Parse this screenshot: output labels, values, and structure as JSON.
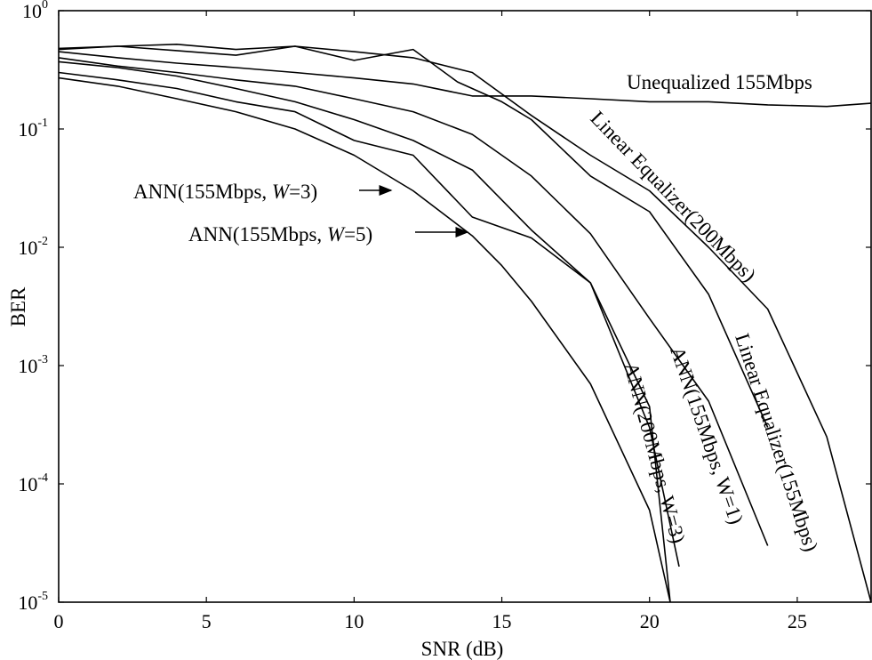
{
  "chart_data": {
    "type": "line",
    "xlabel": "SNR (dB)",
    "ylabel": "BER",
    "xlim": [
      0,
      27.5
    ],
    "ylim": [
      1e-05,
      1
    ],
    "yscale": "log",
    "grid": false,
    "x_ticks": [
      0,
      5,
      10,
      15,
      20,
      25
    ],
    "y_ticks": [
      {
        "value": 1,
        "base": "10",
        "exp": "0"
      },
      {
        "value": 0.1,
        "base": "10",
        "exp": "-1"
      },
      {
        "value": 0.01,
        "base": "10",
        "exp": "-2"
      },
      {
        "value": 0.001,
        "base": "10",
        "exp": "-3"
      },
      {
        "value": 0.0001,
        "base": "10",
        "exp": "-4"
      },
      {
        "value": 1e-05,
        "base": "10",
        "exp": "-5"
      }
    ],
    "series": [
      {
        "name": "Unequalized 155Mbps",
        "x": [
          0,
          2,
          4,
          6,
          8,
          10,
          12,
          14,
          16,
          18,
          20,
          22,
          24,
          26,
          27.5
        ],
        "y": [
          0.45,
          0.4,
          0.36,
          0.33,
          0.3,
          0.27,
          0.24,
          0.19,
          0.19,
          0.18,
          0.17,
          0.17,
          0.16,
          0.155,
          0.165
        ]
      },
      {
        "name": "Linear Equalizer(200Mbps)",
        "x": [
          0,
          2,
          4,
          6,
          8,
          10,
          12,
          14,
          16,
          18,
          20,
          22,
          24,
          26,
          27.5
        ],
        "y": [
          0.48,
          0.5,
          0.46,
          0.42,
          0.5,
          0.45,
          0.4,
          0.3,
          0.13,
          0.06,
          0.03,
          0.01,
          0.003,
          0.00025,
          1e-05
        ]
      },
      {
        "name": "Linear Equalizer(155Mbps)",
        "x": [
          0,
          2,
          4,
          6,
          8,
          10,
          12,
          13.5,
          15,
          16,
          18,
          20,
          22,
          24
        ],
        "y": [
          0.47,
          0.5,
          0.52,
          0.47,
          0.5,
          0.38,
          0.47,
          0.25,
          0.17,
          0.12,
          0.04,
          0.02,
          0.004,
          0.0003
        ]
      },
      {
        "name": "ANN(155Mbps, W=1)",
        "x": [
          0,
          2,
          4,
          6,
          8,
          10,
          12,
          14,
          16,
          18,
          20,
          22,
          24
        ],
        "y": [
          0.4,
          0.34,
          0.3,
          0.26,
          0.23,
          0.18,
          0.14,
          0.09,
          0.04,
          0.013,
          0.0025,
          0.0005,
          3e-05
        ]
      },
      {
        "name": "ANN(200Mbps, W=3)",
        "x": [
          0,
          2,
          4,
          6,
          8,
          10,
          12,
          14,
          16,
          18,
          20,
          21
        ],
        "y": [
          0.37,
          0.33,
          0.28,
          0.22,
          0.17,
          0.12,
          0.08,
          0.045,
          0.014,
          0.005,
          0.0003,
          2e-05
        ]
      },
      {
        "name": "ANN(155Mbps, W=3)",
        "x": [
          0,
          2,
          4,
          6,
          8,
          10,
          12,
          14,
          16,
          18,
          20,
          20.7
        ],
        "y": [
          0.3,
          0.26,
          0.22,
          0.17,
          0.14,
          0.08,
          0.06,
          0.018,
          0.012,
          0.005,
          0.00045,
          1e-05
        ]
      },
      {
        "name": "ANN(155Mbps, W=5)",
        "x": [
          0,
          2,
          4,
          6,
          8,
          10,
          12,
          14,
          15,
          16,
          18,
          20,
          20.7
        ],
        "y": [
          0.27,
          0.23,
          0.18,
          0.14,
          0.1,
          0.06,
          0.03,
          0.0125,
          0.007,
          0.0035,
          0.0007,
          6e-05,
          1e-05
        ]
      }
    ],
    "annotations": [
      {
        "text": "Unequalized 155Mbps"
      },
      {
        "text": "Linear Equalizer(200Mbps)"
      },
      {
        "text": "Linear Equalizer(155Mbps)"
      },
      {
        "text": "ANN(155Mbps, W=1)"
      },
      {
        "text": "ANN(200Mbps, W=3)"
      },
      {
        "prefix": "ANN(155Mbps, ",
        "var": "W",
        "suffix": "=3)"
      },
      {
        "prefix": "ANN(155Mbps, ",
        "var": "W",
        "suffix": "=5)"
      }
    ]
  }
}
